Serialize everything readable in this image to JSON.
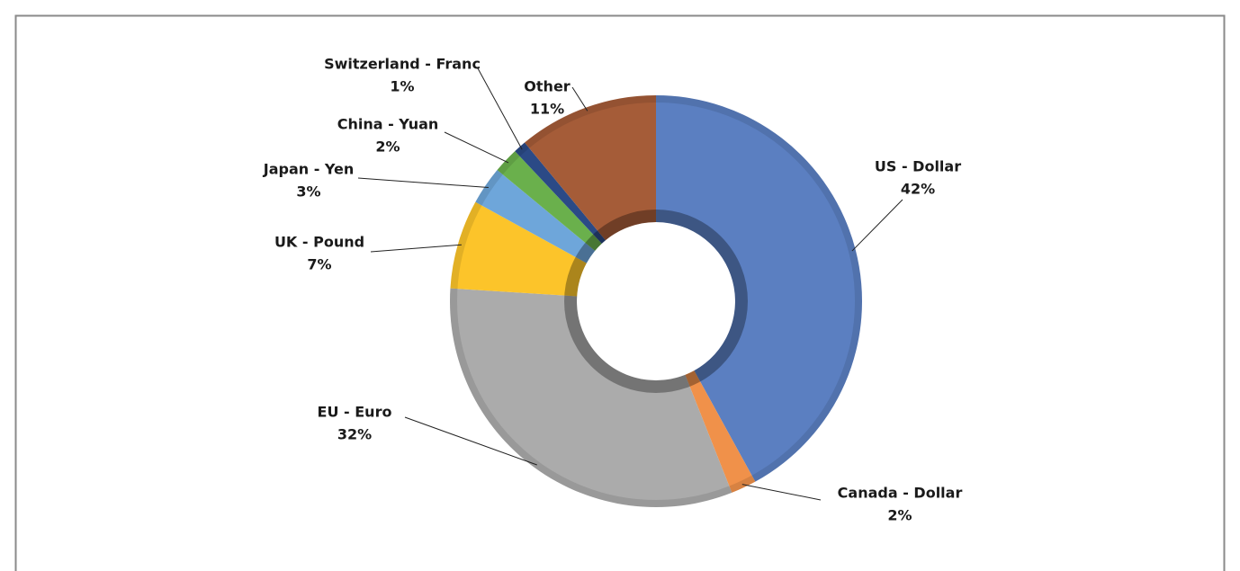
{
  "chart_data": {
    "type": "donut",
    "categories": [
      "US - Dollar",
      "Canada - Dollar",
      "EU - Euro",
      "UK - Pound",
      "Japan - Yen",
      "China - Yuan",
      "Switzerland - Franc",
      "Other"
    ],
    "values": [
      42,
      2,
      32,
      7,
      3,
      2,
      1,
      11
    ],
    "value_labels": [
      "42%",
      "2%",
      "32%",
      "7%",
      "3%",
      "2%",
      "1%",
      "11%"
    ],
    "colors": [
      "#5b7fc1",
      "#f0914a",
      "#ababab",
      "#fcc42a",
      "#6ea6da",
      "#6ab04c",
      "#2b4a86",
      "#a55c38"
    ]
  }
}
